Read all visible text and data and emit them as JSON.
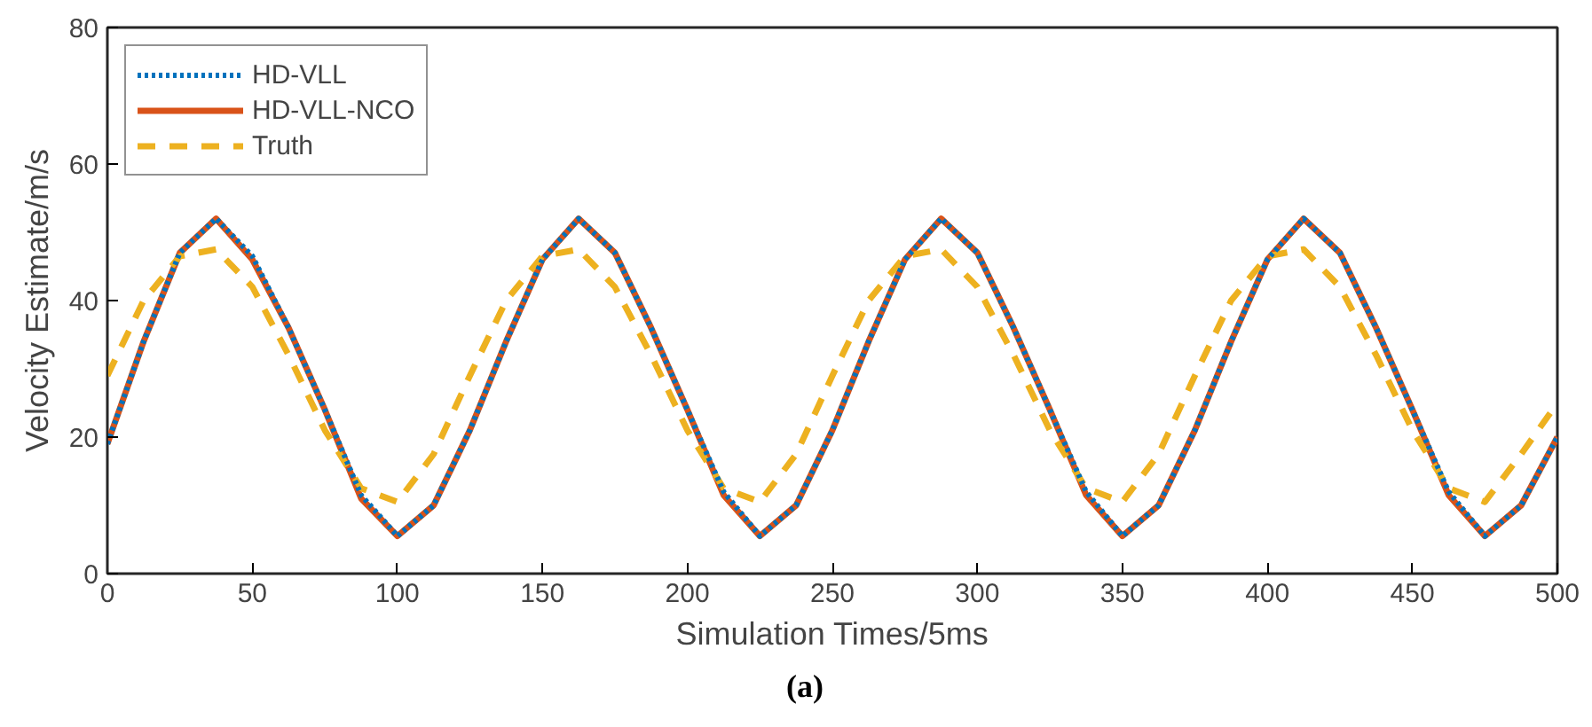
{
  "chart_data": {
    "type": "line",
    "xlabel": "Simulation Times/5ms",
    "ylabel": "Velocity Estimate/m/s",
    "annotations": [
      "(a)"
    ],
    "x": [
      0,
      12.5,
      25,
      37.5,
      50,
      62.5,
      75,
      87.5,
      100,
      112.5,
      125,
      137.5,
      150,
      162.5,
      175,
      187.5,
      200,
      212.5,
      225,
      237.5,
      250,
      262.5,
      275,
      287.5,
      300,
      312.5,
      325,
      337.5,
      350,
      362.5,
      375,
      387.5,
      400,
      412.5,
      425,
      437.5,
      450,
      462.5,
      475,
      487.5,
      500
    ],
    "series": [
      {
        "name": "HD-VLL",
        "color": "#0072bd",
        "line_style": "dotted",
        "values": [
          19,
          34,
          47,
          52,
          46.5,
          36,
          24,
          11.5,
          5.5,
          10,
          21,
          34,
          46,
          52,
          47,
          36,
          24,
          12,
          5.5,
          10,
          21,
          34,
          46,
          52,
          47,
          36,
          24,
          12,
          5.5,
          10,
          21,
          34,
          46,
          52,
          47,
          36,
          24,
          12,
          5.5,
          10,
          20
        ]
      },
      {
        "name": "HD-VLL-NCO",
        "color": "#d95319",
        "line_style": "solid",
        "values": [
          19,
          34,
          47,
          52,
          46,
          36,
          24,
          11,
          5.5,
          10,
          21,
          34,
          46,
          52,
          47,
          36,
          24,
          11.5,
          5.5,
          10,
          21,
          34,
          46,
          52,
          47,
          36,
          24,
          11.5,
          5.5,
          10,
          21,
          34,
          46,
          52,
          47,
          36,
          24,
          11.5,
          5.5,
          10,
          20
        ]
      },
      {
        "name": "Truth",
        "color": "#edb120",
        "line_style": "dashed",
        "values": [
          29,
          40,
          46.5,
          47.5,
          42,
          32,
          21,
          12.5,
          10.5,
          17.5,
          29,
          40,
          46.5,
          47.5,
          42,
          32,
          21,
          12.5,
          10.5,
          17.5,
          29,
          40,
          46.5,
          47.5,
          42,
          32,
          21,
          12.5,
          10.5,
          17.5,
          29,
          40,
          46.5,
          47.5,
          42,
          32,
          21,
          12.5,
          10.5,
          17.5,
          25
        ]
      }
    ],
    "xlim": [
      0,
      500
    ],
    "ylim": [
      0,
      80
    ],
    "xticks": [
      0,
      50,
      100,
      150,
      200,
      250,
      300,
      350,
      400,
      450,
      500
    ],
    "yticks": [
      0,
      20,
      40,
      60,
      80
    ],
    "grid": false,
    "legend": "top left",
    "marker": "none"
  }
}
